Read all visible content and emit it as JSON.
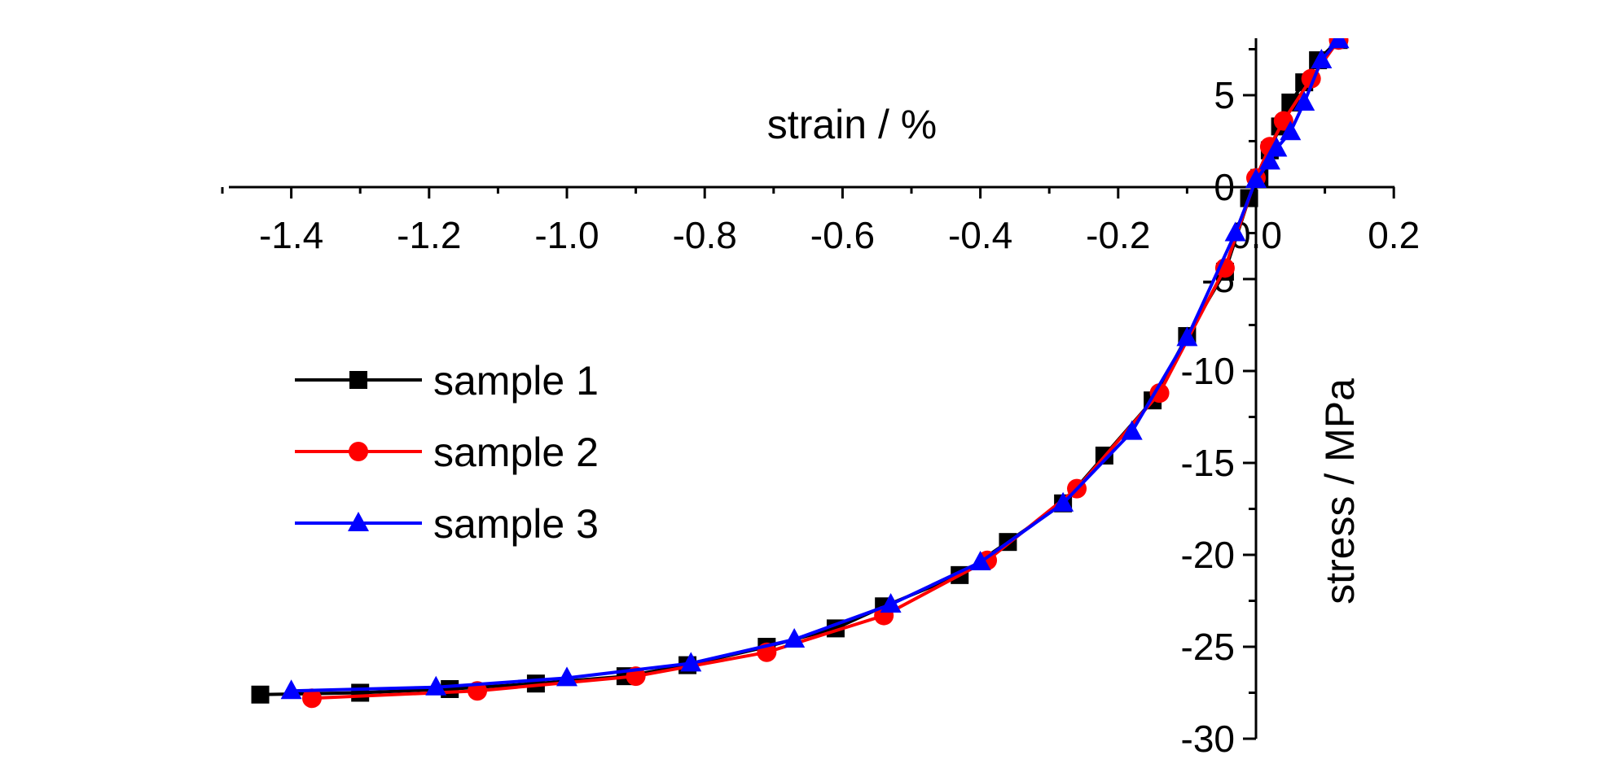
{
  "chart_data": {
    "type": "scatter",
    "title": "",
    "xlabel": "strain / %",
    "ylabel": "stress / MPa",
    "xlim": [
      -1.52,
      0.2
    ],
    "ylim": [
      -30,
      8
    ],
    "x_ticks": [
      "-1.4",
      "-1.2",
      "-1.0",
      "-0.8",
      "-0.6",
      "-0.4",
      "-0.2",
      "0.0",
      "0.2"
    ],
    "x_tick_values": [
      -1.4,
      -1.2,
      -1.0,
      -0.8,
      -0.6,
      -0.4,
      -0.2,
      0.0,
      0.2
    ],
    "y_ticks": [
      "5",
      "0",
      "-5",
      "-10",
      "-15",
      "-20",
      "-25",
      "-30"
    ],
    "y_tick_values": [
      5,
      0,
      -5,
      -10,
      -15,
      -20,
      -25,
      -30
    ],
    "grid": false,
    "legend_position": "left",
    "series": [
      {
        "name": "sample 1",
        "color": "#000000",
        "marker": "square",
        "x": [
          -1.445,
          -1.3,
          -1.17,
          -1.045,
          -0.915,
          -0.825,
          -0.71,
          -0.61,
          -0.54,
          -0.43,
          -0.36,
          -0.28,
          -0.22,
          -0.15,
          -0.1,
          -0.045,
          -0.01,
          0.005,
          0.02,
          0.035,
          0.05,
          0.07,
          0.09,
          0.12
        ],
        "y": [
          -27.6,
          -27.5,
          -27.3,
          -27.0,
          -26.6,
          -26.0,
          -25.0,
          -24.0,
          -22.8,
          -21.1,
          -19.3,
          -17.2,
          -14.6,
          -11.6,
          -8.1,
          -4.6,
          -0.6,
          0.5,
          2.0,
          3.3,
          4.6,
          5.7,
          6.9,
          8.0
        ]
      },
      {
        "name": "sample 2",
        "color": "#ff0000",
        "marker": "circle",
        "x": [
          -1.37,
          -1.13,
          -0.9,
          -0.71,
          -0.54,
          -0.39,
          -0.26,
          -0.14,
          -0.045,
          0.0,
          0.02,
          0.04,
          0.08,
          0.12
        ],
        "y": [
          -27.8,
          -27.4,
          -26.6,
          -25.3,
          -23.3,
          -20.3,
          -16.4,
          -11.2,
          -4.4,
          0.5,
          2.2,
          3.6,
          5.9,
          8.0
        ]
      },
      {
        "name": "sample 3",
        "color": "#0000ff",
        "marker": "triangle",
        "x": [
          -1.4,
          -1.19,
          -1.0,
          -0.82,
          -0.67,
          -0.53,
          -0.4,
          -0.28,
          -0.18,
          -0.1,
          -0.03,
          0.0,
          0.02,
          0.03,
          0.05,
          0.07,
          0.095,
          0.12
        ],
        "y": [
          -27.4,
          -27.2,
          -26.7,
          -25.9,
          -24.6,
          -22.7,
          -20.4,
          -17.2,
          -13.3,
          -8.2,
          -2.5,
          0.4,
          1.4,
          2.1,
          3.0,
          4.6,
          6.9,
          8.0
        ]
      }
    ]
  }
}
